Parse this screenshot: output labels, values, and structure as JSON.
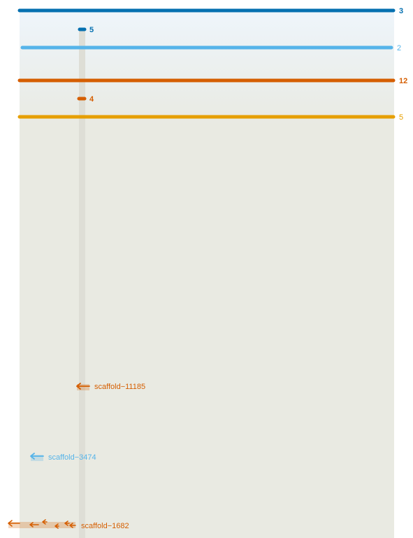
{
  "colors": {
    "dark_blue": "#0570b0",
    "light_blue": "#56b4e9",
    "dark_orange": "#d55e00",
    "orange": "#e69f00",
    "band_top": "#eef5fb",
    "band_bottom": "#e9eae2",
    "strip": "#deded6"
  },
  "bars": [
    {
      "id": "bar-1",
      "label": "3",
      "color": "dark_blue",
      "extent": "full"
    },
    {
      "id": "bar-2",
      "label": "5",
      "color": "dark_blue",
      "extent": "short"
    },
    {
      "id": "bar-3",
      "label": "2",
      "color": "light_blue",
      "extent": "full"
    },
    {
      "id": "bar-4",
      "label": "12",
      "color": "dark_orange",
      "extent": "full"
    },
    {
      "id": "bar-5",
      "label": "4",
      "color": "dark_orange",
      "extent": "short"
    },
    {
      "id": "bar-6",
      "label": "5",
      "color": "orange",
      "extent": "full"
    }
  ],
  "scaffolds": [
    {
      "id": "scaffold-11185",
      "label": "scaffold−11185",
      "color": "dark_orange",
      "arrows": 1,
      "orientation": "reverse"
    },
    {
      "id": "scaffold-3474",
      "label": "scaffold−3474",
      "color": "light_blue",
      "arrows": 1,
      "orientation": "reverse"
    },
    {
      "id": "scaffold-1682",
      "label": "scaffold−1682",
      "color": "dark_orange",
      "arrows": 6,
      "orientation": "reverse"
    }
  ]
}
